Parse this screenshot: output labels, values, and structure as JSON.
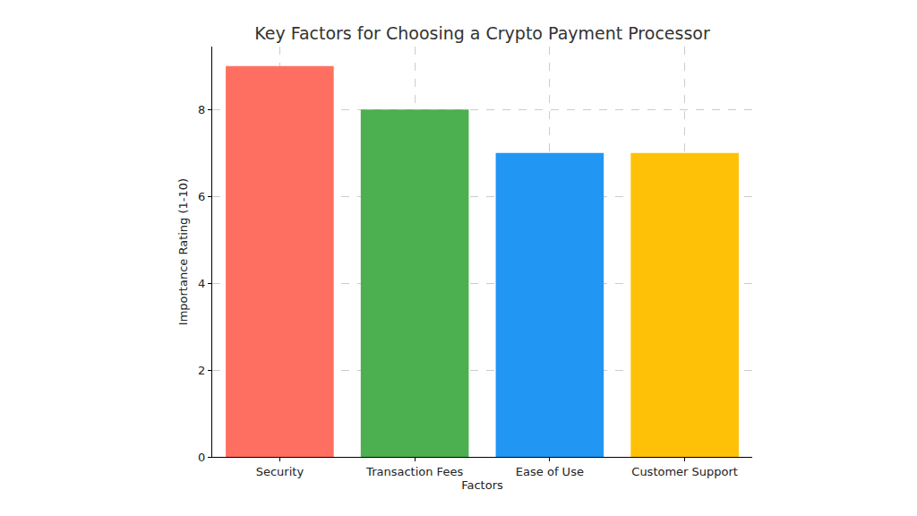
{
  "chart_data": {
    "type": "bar",
    "title": "Key Factors for Choosing a Crypto Payment Processor",
    "x_label": "Factors",
    "y_label": "Importance Rating (1-10)",
    "categories": [
      "Security",
      "Transaction Fees",
      "Ease of Use",
      "Customer Support"
    ],
    "values": [
      9,
      8,
      7,
      7
    ],
    "colors": [
      "#ff6f61",
      "#4caf50",
      "#2196f3",
      "#ffc107"
    ],
    "ylim": [
      0,
      9.45
    ],
    "yticks": [
      0,
      2,
      4,
      6,
      8
    ],
    "grid": true
  }
}
